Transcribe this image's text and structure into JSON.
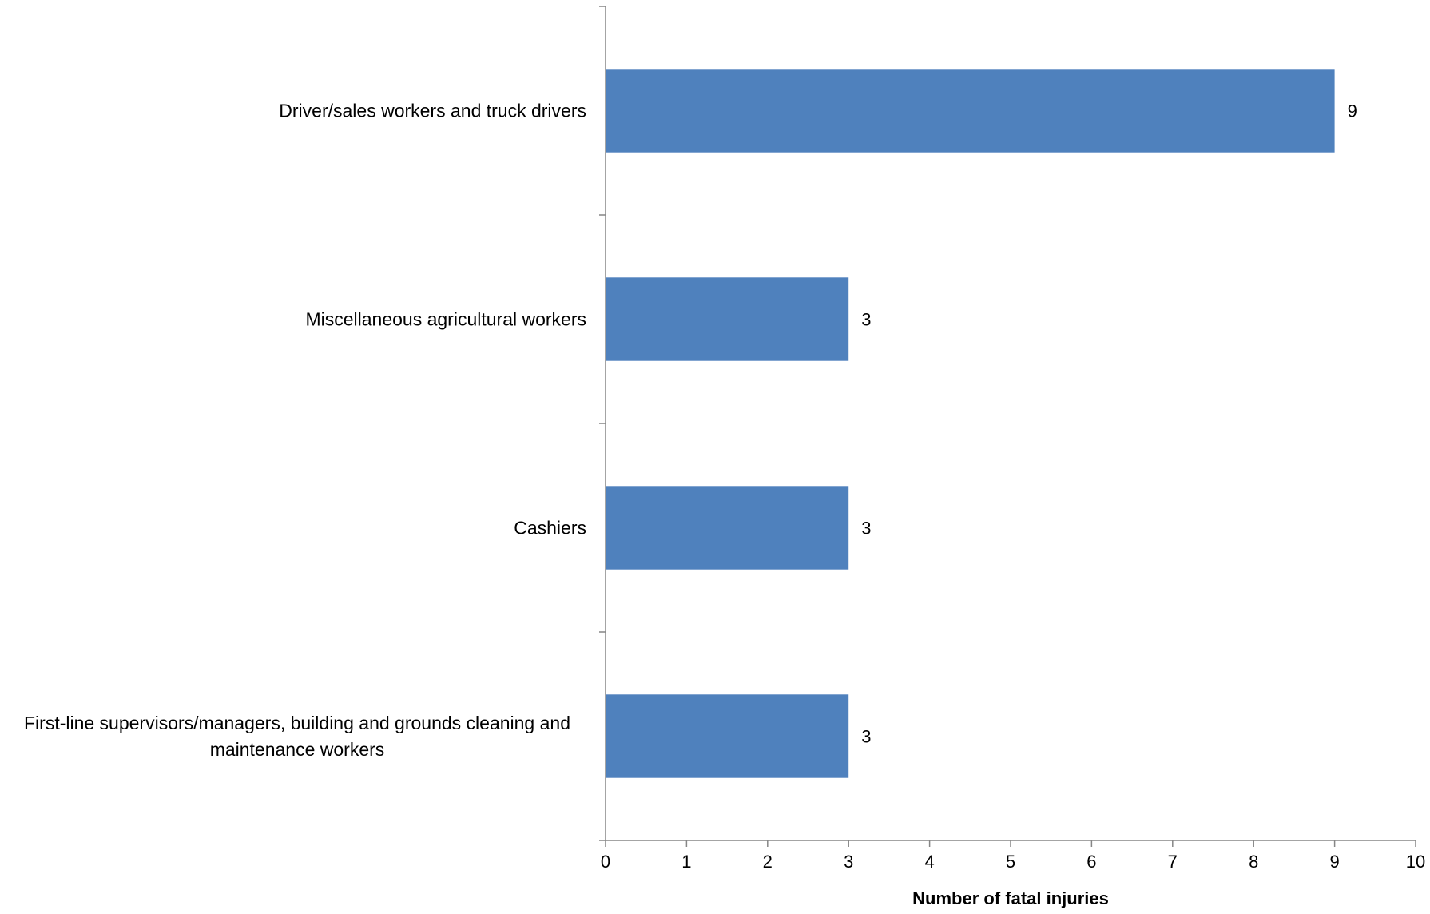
{
  "chart_data": {
    "type": "bar",
    "orientation": "horizontal",
    "categories": [
      "Driver/sales workers and truck drivers",
      "Miscellaneous agricultural workers",
      "Cashiers",
      "First-line supervisors/managers, building and grounds cleaning and maintenance workers"
    ],
    "category_lines": [
      [
        "Driver/sales workers and truck drivers"
      ],
      [
        "Miscellaneous agricultural workers"
      ],
      [
        "Cashiers"
      ],
      [
        "First-line supervisors/managers, building and grounds cleaning and",
        "maintenance workers"
      ]
    ],
    "values": [
      9,
      3,
      3,
      3
    ],
    "data_labels": [
      "9",
      "3",
      "3",
      "3"
    ],
    "xlabel": "Number of fatal injuries",
    "ylabel": "",
    "xlim": [
      0,
      10
    ],
    "x_ticks": [
      "0",
      "1",
      "2",
      "3",
      "4",
      "5",
      "6",
      "7",
      "8",
      "9",
      "10"
    ],
    "grid": false,
    "legend": "none",
    "bar_color": "#4F81BD",
    "axis_color": "#868686"
  }
}
